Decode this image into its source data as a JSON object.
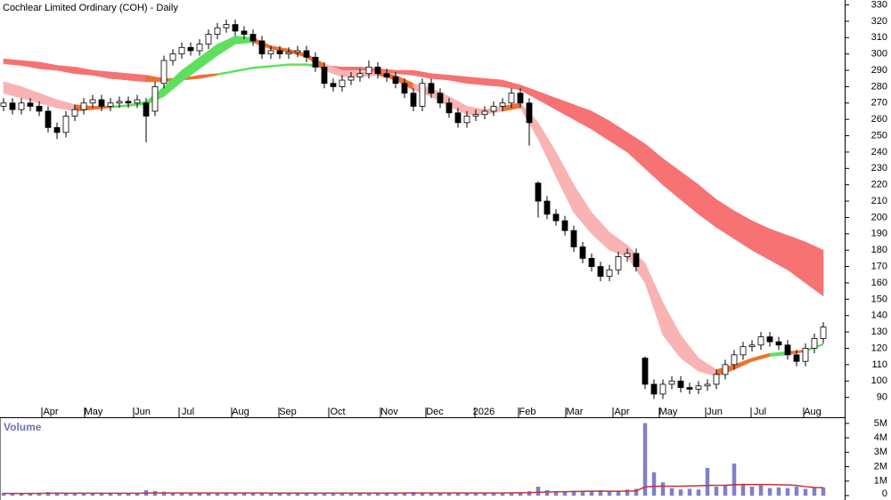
{
  "chart_data": {
    "type": "candlestick",
    "title": "Cochlear Limited Ordinary (COH) - Daily",
    "xlim": [
      -0.4,
      94.4
    ],
    "xticks": [
      {
        "value": 5.3,
        "label": "Apr"
      },
      {
        "value": 10.1,
        "label": "May"
      },
      {
        "value": 15.6,
        "label": "Jun"
      },
      {
        "value": 20.7,
        "label": "Jul"
      },
      {
        "value": 26.6,
        "label": "Aug"
      },
      {
        "value": 31.9,
        "label": "Sep"
      },
      {
        "value": 37.5,
        "label": "Oct"
      },
      {
        "value": 43.3,
        "label": "Nov"
      },
      {
        "value": 48.4,
        "label": "Dec"
      },
      {
        "value": 53.9,
        "label": "2026"
      },
      {
        "value": 58.8,
        "label": "Feb"
      },
      {
        "value": 64.1,
        "label": "Mar"
      },
      {
        "value": 69.4,
        "label": "Apr"
      },
      {
        "value": 74.6,
        "label": "May"
      },
      {
        "value": 79.8,
        "label": "Jun"
      },
      {
        "value": 84.9,
        "label": "Jul"
      },
      {
        "value": 90.8,
        "label": "Aug"
      }
    ],
    "ylim": [
      80,
      333
    ],
    "yticks": [
      90,
      100,
      110,
      120,
      130,
      140,
      150,
      160,
      170,
      180,
      190,
      200,
      210,
      220,
      230,
      240,
      250,
      260,
      270,
      280,
      290,
      300,
      310,
      320,
      330
    ],
    "up_color": "#ffffff",
    "down_color": "#000000",
    "open": [
      268,
      270,
      266,
      270,
      268,
      265,
      255,
      252,
      262,
      266,
      270,
      272,
      268,
      270,
      271,
      270,
      270,
      265,
      282,
      296,
      300,
      304,
      302,
      306,
      312,
      316,
      318,
      314,
      312,
      308,
      300,
      302,
      300,
      301,
      302,
      298,
      292,
      282,
      280,
      284,
      286,
      288,
      292,
      288,
      286,
      282,
      276,
      268,
      282,
      276,
      270,
      264,
      258,
      262,
      263,
      265,
      268,
      270,
      276,
      270,
      221,
      210,
      202,
      198,
      192,
      182,
      175,
      170,
      164,
      168,
      176,
      178,
      114,
      98,
      92,
      98,
      100,
      96,
      95,
      97,
      98,
      104,
      110,
      116,
      121,
      122,
      127,
      124,
      122,
      116,
      112,
      120,
      126
    ],
    "high": [
      273,
      273,
      273,
      273,
      271,
      268,
      258,
      265,
      269,
      273,
      275,
      275,
      273,
      274,
      274,
      275,
      273,
      283,
      299,
      303,
      307,
      307,
      309,
      315,
      319,
      321,
      321,
      317,
      315,
      311,
      305,
      305,
      304,
      305,
      305,
      301,
      295,
      285,
      287,
      289,
      291,
      296,
      295,
      291,
      289,
      285,
      279,
      285,
      285,
      279,
      273,
      267,
      265,
      266,
      268,
      271,
      273,
      279,
      279,
      273,
      222,
      213,
      205,
      201,
      195,
      185,
      178,
      173,
      171,
      179,
      181,
      181,
      115,
      101,
      101,
      103,
      103,
      99,
      100,
      101,
      107,
      113,
      119,
      124,
      125,
      130,
      130,
      127,
      125,
      119,
      123,
      129,
      136
    ],
    "low": [
      265,
      263,
      263,
      265,
      262,
      252,
      248,
      249,
      259,
      263,
      267,
      265,
      265,
      267,
      267,
      267,
      246,
      262,
      279,
      293,
      297,
      299,
      299,
      303,
      309,
      313,
      311,
      309,
      305,
      297,
      297,
      297,
      297,
      298,
      295,
      289,
      279,
      277,
      277,
      281,
      283,
      285,
      285,
      283,
      279,
      273,
      265,
      265,
      273,
      267,
      261,
      255,
      255,
      259,
      260,
      262,
      265,
      267,
      267,
      244,
      200,
      199,
      195,
      189,
      179,
      172,
      167,
      161,
      161,
      165,
      173,
      167,
      95,
      89,
      89,
      95,
      93,
      92,
      92,
      94,
      95,
      101,
      107,
      113,
      118,
      119,
      121,
      119,
      113,
      109,
      109,
      117,
      123
    ],
    "close": [
      270,
      266,
      270,
      268,
      265,
      255,
      252,
      262,
      266,
      270,
      272,
      268,
      270,
      271,
      270,
      272,
      262,
      280,
      296,
      300,
      304,
      302,
      306,
      312,
      316,
      318,
      314,
      312,
      308,
      300,
      302,
      300,
      301,
      302,
      298,
      292,
      282,
      280,
      284,
      286,
      288,
      292,
      288,
      286,
      282,
      276,
      268,
      282,
      276,
      270,
      264,
      258,
      262,
      263,
      265,
      268,
      270,
      276,
      270,
      258,
      210,
      202,
      198,
      192,
      182,
      175,
      170,
      164,
      168,
      176,
      178,
      170,
      98,
      92,
      98,
      100,
      96,
      95,
      97,
      98,
      104,
      110,
      116,
      121,
      122,
      127,
      124,
      122,
      116,
      112,
      120,
      126,
      133
    ],
    "bands": [
      {
        "x": [
          0,
          2,
          4,
          6,
          8,
          10,
          12,
          14,
          16,
          18,
          20,
          22,
          24,
          26,
          28,
          30,
          32,
          34,
          36,
          38,
          40,
          42,
          44,
          46,
          48,
          50,
          52,
          54,
          56,
          58,
          60,
          62,
          64,
          66,
          68,
          70,
          72,
          74,
          76,
          78,
          80,
          82,
          84,
          86,
          88,
          90,
          92
        ],
        "upper": [
          297,
          296,
          295,
          293,
          292,
          290,
          289,
          288,
          287,
          285,
          285,
          287,
          288,
          290,
          292,
          293,
          294,
          294,
          293,
          292,
          292,
          291,
          290,
          290,
          288,
          287,
          286,
          285,
          284,
          281,
          277,
          273,
          269,
          265,
          259,
          252,
          245,
          236,
          228,
          220,
          211,
          204,
          198,
          193,
          189,
          185,
          180
        ],
        "lower": [
          294,
          293,
          291,
          290,
          288,
          287,
          285,
          284,
          283,
          283,
          284,
          285,
          287,
          289,
          291,
          292,
          293,
          293,
          291,
          290,
          290,
          289,
          288,
          287,
          285,
          284,
          282,
          281,
          280,
          278,
          272,
          266,
          260,
          254,
          247,
          240,
          230,
          220,
          211,
          202,
          194,
          187,
          180,
          174,
          168,
          160,
          152
        ],
        "segments": [
          {
            "from": 0,
            "color": "#f77272"
          },
          {
            "from": 16,
            "color": "#f07030"
          },
          {
            "from": 24,
            "color": "#5ee05e"
          },
          {
            "from": 36,
            "color": "#f77272"
          }
        ]
      },
      {
        "x": [
          0,
          2,
          4,
          6,
          8,
          10,
          12,
          14,
          16,
          18,
          20,
          22,
          24,
          26,
          28,
          30,
          32,
          34,
          36,
          38,
          40,
          42,
          44,
          46,
          48,
          50,
          52,
          54,
          56,
          58,
          60,
          62,
          64,
          66,
          68,
          70,
          72,
          74,
          76,
          78,
          80,
          82,
          84,
          86,
          88,
          90,
          92
        ],
        "upper": [
          283,
          280,
          276,
          272,
          269,
          268,
          268,
          269,
          271,
          280,
          290,
          298,
          306,
          311,
          310,
          305,
          303,
          300,
          294,
          290,
          289,
          289,
          287,
          282,
          279,
          274,
          268,
          266,
          268,
          270,
          258,
          240,
          220,
          203,
          191,
          183,
          172,
          148,
          128,
          114,
          107,
          110,
          114,
          117,
          118,
          119,
          123
        ],
        "lower": [
          276,
          273,
          270,
          267,
          265,
          266,
          267,
          268,
          269,
          274,
          283,
          291,
          299,
          306,
          307,
          303,
          301,
          298,
          290,
          286,
          286,
          287,
          284,
          278,
          274,
          268,
          263,
          263,
          265,
          267,
          248,
          225,
          203,
          190,
          180,
          176,
          160,
          128,
          114,
          106,
          103,
          107,
          112,
          115,
          116,
          118,
          122
        ],
        "segments": [
          {
            "from": 0,
            "color": "#f9b3b3"
          },
          {
            "from": 8,
            "color": "#f07030"
          },
          {
            "from": 12,
            "color": "#5ee05e"
          },
          {
            "from": 28,
            "color": "#f07030"
          },
          {
            "from": 36,
            "color": "#f9b3b3"
          },
          {
            "from": 42,
            "color": "#f07030"
          },
          {
            "from": 46,
            "color": "#f9b3b3"
          },
          {
            "from": 56,
            "color": "#f07030"
          },
          {
            "from": 58,
            "color": "#f9b3b3"
          },
          {
            "from": 80,
            "color": "#f07030"
          },
          {
            "from": 86,
            "color": "#5ee05e"
          },
          {
            "from": 88,
            "color": "#f07030"
          },
          {
            "from": 90,
            "color": "#5ee05e"
          }
        ]
      }
    ],
    "volume": {
      "label": "Volume",
      "color": "#8080c8",
      "ylim": [
        0,
        5300000
      ],
      "yticks": [
        0,
        {
          "value": 1000000,
          "label": "1M"
        },
        {
          "value": 2000000,
          "label": "2M"
        },
        {
          "value": 3000000,
          "label": "3M"
        },
        {
          "value": 4000000,
          "label": "4M"
        },
        {
          "value": 5000000,
          "label": "5M"
        }
      ],
      "values": [
        180000,
        140000,
        160000,
        150000,
        170000,
        220000,
        200000,
        160000,
        150000,
        140000,
        150000,
        130000,
        160000,
        150000,
        140000,
        170000,
        350000,
        300000,
        250000,
        200000,
        180000,
        170000,
        160000,
        180000,
        170000,
        160000,
        200000,
        180000,
        170000,
        190000,
        160000,
        150000,
        140000,
        160000,
        150000,
        180000,
        200000,
        170000,
        160000,
        150000,
        140000,
        160000,
        150000,
        170000,
        180000,
        200000,
        220000,
        190000,
        170000,
        160000,
        180000,
        190000,
        170000,
        160000,
        150000,
        160000,
        170000,
        200000,
        220000,
        280000,
        600000,
        350000,
        300000,
        280000,
        320000,
        300000,
        280000,
        350000,
        300000,
        280000,
        400000,
        450000,
        5000000,
        1600000,
        900000,
        500000,
        400000,
        450000,
        400000,
        1900000,
        600000,
        700000,
        2200000,
        800000,
        600000,
        700000,
        500000,
        550000,
        500000,
        600000,
        450000,
        500000,
        550000
      ],
      "average": {
        "color": "#c83232",
        "values": [
          150000,
          150000,
          150000,
          150000,
          155000,
          160000,
          160000,
          160000,
          160000,
          160000,
          160000,
          160000,
          160000,
          160000,
          160000,
          160000,
          170000,
          175000,
          180000,
          180000,
          180000,
          180000,
          180000,
          180000,
          175000,
          175000,
          175000,
          175000,
          175000,
          175000,
          170000,
          170000,
          170000,
          170000,
          170000,
          170000,
          170000,
          170000,
          170000,
          170000,
          170000,
          170000,
          170000,
          170000,
          170000,
          175000,
          180000,
          180000,
          180000,
          180000,
          180000,
          180000,
          180000,
          180000,
          180000,
          180000,
          180000,
          185000,
          190000,
          200000,
          230000,
          250000,
          260000,
          270000,
          280000,
          290000,
          300000,
          300000,
          300000,
          300000,
          310000,
          320000,
          600000,
          640000,
          650000,
          650000,
          650000,
          660000,
          680000,
          700000,
          710000,
          720000,
          750000,
          760000,
          760000,
          760000,
          760000,
          750000,
          740000,
          700000,
          620000,
          560000,
          550000
        ]
      }
    }
  }
}
